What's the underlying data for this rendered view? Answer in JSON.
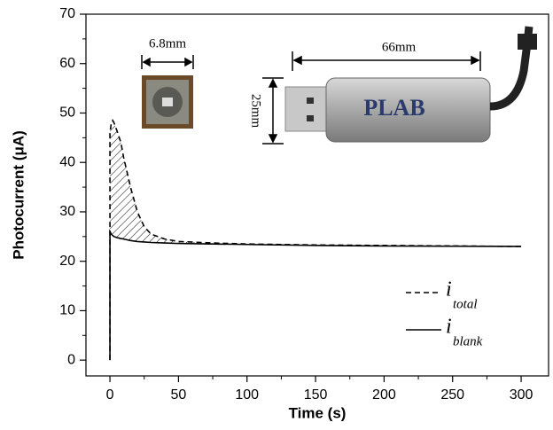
{
  "chart_data": {
    "type": "line",
    "x_label": "Time (s)",
    "y_label": "Photocurrent (μA)",
    "xlim": [
      -17.5,
      320
    ],
    "ylim": [
      -3.2,
      70
    ],
    "xticks": [
      0,
      50,
      100,
      150,
      200,
      250,
      300
    ],
    "yticks": [
      0,
      10,
      20,
      30,
      40,
      50,
      60,
      70
    ],
    "legend_symbol": "i",
    "annotations": [
      "6.8mm",
      "66mm",
      "25mm",
      "PLAB"
    ],
    "x": [
      0,
      0,
      1,
      2,
      3,
      5,
      8,
      10,
      15,
      20,
      25,
      30,
      40,
      50,
      75,
      100,
      150,
      200,
      250,
      300
    ],
    "series": [
      {
        "name": "total",
        "color": "#000000",
        "dash": true,
        "values": [
          0,
          46,
          48,
          48.5,
          48,
          46.5,
          44,
          41,
          35,
          30,
          27,
          25.5,
          24.5,
          24,
          23.7,
          23.5,
          23.3,
          23.2,
          23.1,
          23
        ]
      },
      {
        "name": "blank",
        "color": "#000000",
        "dash": false,
        "values": [
          0,
          26,
          25.5,
          25.2,
          25,
          24.8,
          24.6,
          24.5,
          24.2,
          24,
          23.9,
          23.8,
          23.7,
          23.6,
          23.5,
          23.4,
          23.2,
          23.1,
          23.05,
          23
        ]
      }
    ]
  }
}
